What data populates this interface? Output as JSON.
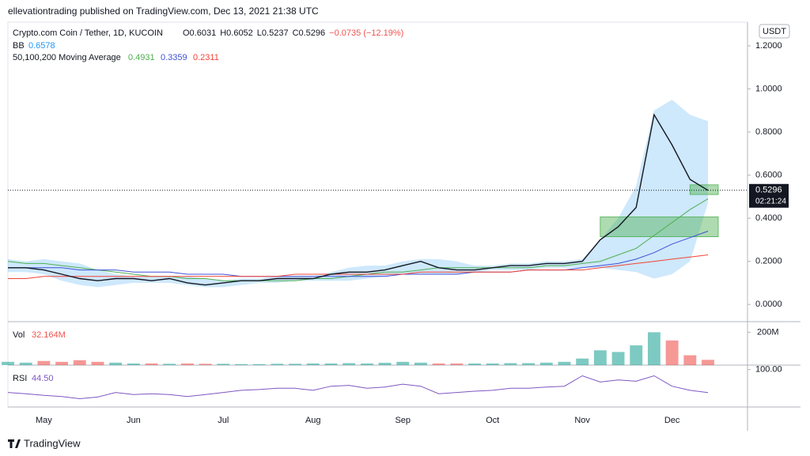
{
  "header": {
    "published": "ellevationtrading published on TradingView.com, Dec 13, 2021 21:38 UTC",
    "symbol": "Crypto.com Coin / Tether, 1D, KUCOIN",
    "ohlc": [
      "O0.6031",
      "H0.6052",
      "L0.5237",
      "C0.5296",
      "−0.0735 (−12.19%)"
    ],
    "bb_label": "BB",
    "bb_value": "0.6578",
    "ma_label": "50,100,200 Moving Average",
    "ma_values": [
      "0.4931",
      "0.3359",
      "0.2311"
    ],
    "currency": "USDT",
    "countdown": "02:21:24",
    "brand": "TradingView"
  },
  "chart_data": {
    "type": "line",
    "categories": [
      null,
      null,
      "May",
      null,
      null,
      null,
      null,
      "Jun",
      null,
      null,
      null,
      null,
      "Jul",
      null,
      null,
      null,
      null,
      "Aug",
      null,
      null,
      null,
      null,
      "Sep",
      null,
      null,
      null,
      null,
      "Oct",
      null,
      null,
      null,
      null,
      "Nov",
      null,
      null,
      null,
      null,
      "Dec",
      null,
      null
    ],
    "values": [
      0.17,
      0.17,
      0.16,
      0.14,
      0.12,
      0.11,
      0.12,
      0.12,
      0.11,
      0.12,
      0.1,
      0.09,
      0.1,
      0.11,
      0.11,
      0.12,
      0.12,
      0.12,
      0.14,
      0.15,
      0.15,
      0.16,
      0.18,
      0.2,
      0.17,
      0.16,
      0.16,
      0.17,
      0.18,
      0.18,
      0.19,
      0.19,
      0.2,
      0.3,
      0.36,
      0.45,
      0.88,
      0.74,
      0.58,
      0.5296
    ],
    "color": "#131722",
    "series": [
      {
        "color": "#4caf50",
        "values": [
          0.2,
          0.19,
          0.19,
          0.18,
          0.17,
          0.16,
          0.15,
          0.14,
          0.13,
          0.13,
          0.12,
          0.12,
          0.11,
          0.11,
          0.11,
          0.11,
          0.11,
          0.12,
          0.12,
          0.13,
          0.14,
          0.15,
          0.15,
          0.16,
          0.17,
          0.17,
          0.17,
          0.17,
          0.17,
          0.17,
          0.18,
          0.18,
          0.19,
          0.2,
          0.23,
          0.26,
          0.32,
          0.38,
          0.44,
          0.49
        ]
      },
      {
        "color": "#3f51d5",
        "values": [
          0.17,
          0.17,
          0.17,
          0.17,
          0.16,
          0.16,
          0.16,
          0.15,
          0.15,
          0.15,
          0.14,
          0.14,
          0.14,
          0.13,
          0.13,
          0.13,
          0.13,
          0.13,
          0.13,
          0.13,
          0.13,
          0.13,
          0.14,
          0.14,
          0.14,
          0.14,
          0.15,
          0.15,
          0.15,
          0.16,
          0.16,
          0.16,
          0.17,
          0.18,
          0.19,
          0.21,
          0.24,
          0.28,
          0.31,
          0.34
        ]
      },
      {
        "color": "#f44336",
        "values": [
          0.12,
          0.12,
          0.13,
          0.13,
          0.13,
          0.13,
          0.13,
          0.13,
          0.13,
          0.13,
          0.13,
          0.13,
          0.13,
          0.13,
          0.13,
          0.13,
          0.14,
          0.14,
          0.14,
          0.14,
          0.14,
          0.14,
          0.14,
          0.15,
          0.15,
          0.15,
          0.15,
          0.15,
          0.15,
          0.16,
          0.16,
          0.16,
          0.16,
          0.17,
          0.18,
          0.19,
          0.2,
          0.21,
          0.22,
          0.23
        ]
      }
    ],
    "bands": {
      "color": "rgba(33,150,243,0.22)",
      "upper": [
        0.21,
        0.2,
        0.21,
        0.2,
        0.19,
        0.16,
        0.14,
        0.13,
        0.13,
        0.13,
        0.13,
        0.12,
        0.11,
        0.12,
        0.12,
        0.13,
        0.13,
        0.13,
        0.15,
        0.17,
        0.18,
        0.18,
        0.2,
        0.21,
        0.21,
        0.2,
        0.18,
        0.18,
        0.19,
        0.19,
        0.2,
        0.2,
        0.21,
        0.3,
        0.4,
        0.55,
        0.9,
        0.95,
        0.88,
        0.85
      ],
      "lower": [
        0.15,
        0.15,
        0.14,
        0.11,
        0.09,
        0.08,
        0.09,
        0.1,
        0.1,
        0.1,
        0.09,
        0.08,
        0.08,
        0.09,
        0.1,
        0.1,
        0.11,
        0.11,
        0.11,
        0.11,
        0.12,
        0.13,
        0.14,
        0.14,
        0.14,
        0.14,
        0.15,
        0.16,
        0.16,
        0.16,
        0.17,
        0.17,
        0.17,
        0.17,
        0.16,
        0.15,
        0.12,
        0.14,
        0.2,
        0.47
      ]
    },
    "zones": [
      {
        "low": 0.314,
        "high": 0.406,
        "start": 33,
        "color": "rgba(76,175,80,0.45)"
      },
      {
        "low": 0.51,
        "high": 0.555,
        "start": 38,
        "color": "rgba(76,175,80,0.45)"
      }
    ],
    "ylim": [
      -0.08,
      1.31
    ],
    "yticks": [
      {
        "value": 0,
        "label": "0.0000"
      },
      {
        "value": 0.2,
        "label": "0.2000"
      },
      {
        "value": 0.4,
        "label": "0.4000"
      },
      {
        "value": 0.6,
        "label": "0.6000"
      },
      {
        "value": 0.8,
        "label": "0.8000"
      },
      {
        "value": 1,
        "label": "1.0000"
      },
      {
        "value": 1.2,
        "label": "1.2000"
      }
    ],
    "volume": {
      "label": "Vol",
      "value_label": "32.164M",
      "values": [
        20000000,
        15000000,
        25000000,
        20000000,
        30000000,
        20000000,
        15000000,
        10000000,
        10000000,
        8000000,
        10000000,
        8000000,
        8000000,
        6000000,
        6000000,
        8000000,
        8000000,
        10000000,
        10000000,
        12000000,
        10000000,
        14000000,
        20000000,
        15000000,
        10000000,
        10000000,
        10000000,
        10000000,
        12000000,
        12000000,
        15000000,
        20000000,
        40000000,
        90000000,
        80000000,
        120000000,
        200000000,
        150000000,
        60000000,
        32164000
      ],
      "up_color": "rgba(38,166,154,0.6)",
      "down_color": "rgba(239,83,80,0.6)",
      "ylim": [
        0,
        250000000
      ],
      "yticks": [
        {
          "value": 200000000,
          "label": "200M"
        }
      ]
    },
    "rsi": {
      "label": "RSI",
      "value_label": "44.50",
      "color": "#7e57c2",
      "values": [
        45,
        42,
        38,
        35,
        30,
        34,
        45,
        40,
        42,
        40,
        35,
        40,
        45,
        50,
        52,
        55,
        55,
        50,
        60,
        62,
        55,
        58,
        65,
        60,
        42,
        45,
        48,
        50,
        55,
        55,
        58,
        60,
        85,
        70,
        75,
        72,
        85,
        60,
        50,
        44.5
      ],
      "ylim": [
        10,
        105
      ],
      "yticks": [
        {
          "value": 100,
          "label": "100.00"
        }
      ]
    }
  }
}
